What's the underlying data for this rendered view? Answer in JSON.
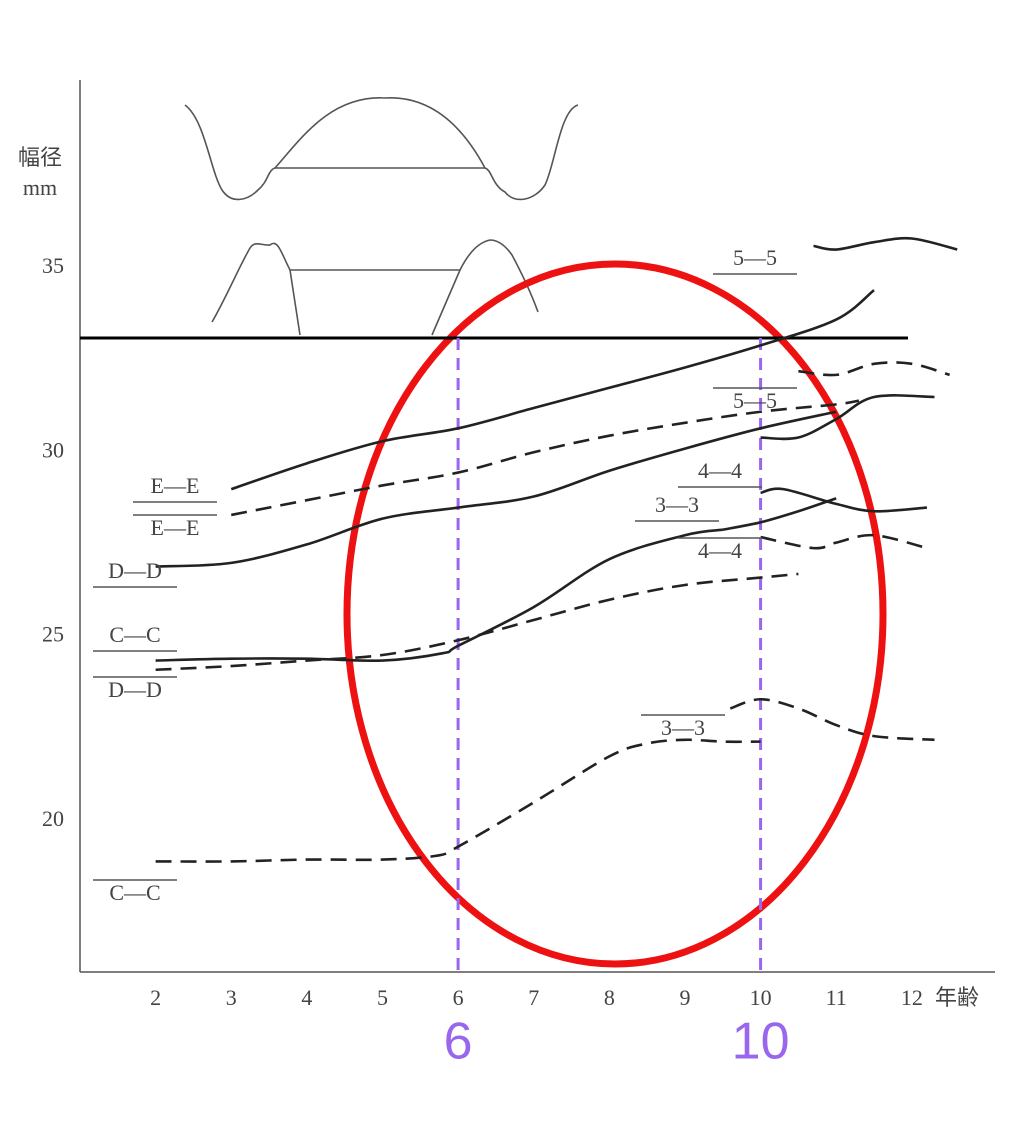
{
  "chart_data": {
    "type": "line",
    "ylabel": "幅径",
    "ylabel_unit": "mm",
    "xlabel": "年齢",
    "xlim": [
      1,
      13.1
    ],
    "ylim": [
      15.9,
      40.1
    ],
    "xticks": [
      2,
      3,
      4,
      5,
      6,
      7,
      8,
      9,
      10,
      11,
      12
    ],
    "yticks": [
      20,
      25,
      30,
      35
    ],
    "grid": false,
    "color": "#222222",
    "series": [
      {
        "name": "E—E",
        "dashed": false,
        "x": [
          3,
          4,
          5,
          6,
          7,
          8,
          9,
          10,
          11,
          11.5
        ],
        "values": [
          29.0,
          29.7,
          30.3,
          30.65,
          31.2,
          31.75,
          32.3,
          32.9,
          33.6,
          34.4
        ]
      },
      {
        "name": "E—E",
        "dashed": true,
        "x": [
          3,
          4,
          5,
          6,
          7,
          8,
          9,
          10,
          11,
          11.3
        ],
        "values": [
          28.3,
          28.7,
          29.1,
          29.45,
          30.0,
          30.45,
          30.8,
          31.1,
          31.3,
          31.4
        ]
      },
      {
        "name": "D—D",
        "dashed": false,
        "x": [
          2,
          3,
          4,
          5,
          6,
          7,
          8,
          9,
          10,
          11
        ],
        "values": [
          26.9,
          27.0,
          27.5,
          28.2,
          28.5,
          28.8,
          29.5,
          30.1,
          30.65,
          31.1
        ]
      },
      {
        "name": "C—C",
        "dashed": false,
        "x": [
          2,
          3,
          4,
          5,
          5.8,
          6,
          7,
          8,
          9,
          9.5
        ],
        "values": [
          24.35,
          24.4,
          24.4,
          24.35,
          24.55,
          24.75,
          25.8,
          27.1,
          27.75,
          27.9
        ]
      },
      {
        "name": "D—D",
        "dashed": true,
        "x": [
          2,
          3,
          4,
          5,
          6,
          7,
          8,
          9,
          10,
          10.5
        ],
        "values": [
          24.1,
          24.2,
          24.35,
          24.5,
          24.9,
          25.45,
          26.0,
          26.4,
          26.6,
          26.7
        ]
      },
      {
        "name": "C—C",
        "dashed": true,
        "x": [
          2,
          3,
          4,
          5,
          5.7,
          6,
          7,
          8,
          8.5,
          9,
          9.5,
          10
        ],
        "values": [
          18.9,
          18.9,
          18.95,
          18.95,
          19.05,
          19.3,
          20.5,
          21.75,
          22.1,
          22.2,
          22.15,
          22.15
        ]
      },
      {
        "name": "3—3",
        "dashed": false,
        "x": [
          9.5,
          10,
          10.5,
          11
        ],
        "values": [
          27.9,
          28.1,
          28.4,
          28.75
        ]
      },
      {
        "name": "3—3",
        "dashed": true,
        "x": [
          9.6,
          10,
          10.5,
          11,
          11.5,
          12.3
        ],
        "values": [
          23.05,
          23.3,
          23.05,
          22.6,
          22.3,
          22.2
        ]
      },
      {
        "name": "4—4",
        "dashed": false,
        "x": [
          10,
          10.3,
          11,
          11.5,
          12.2
        ],
        "values": [
          28.9,
          29.0,
          28.6,
          28.4,
          28.5
        ]
      },
      {
        "name": "4—4",
        "dashed": true,
        "x": [
          10,
          10.7,
          11,
          11.5,
          12.2
        ],
        "values": [
          27.7,
          27.4,
          27.55,
          27.75,
          27.4
        ]
      },
      {
        "name": "5—5",
        "dashed": false,
        "x": [
          10.7,
          11,
          11.5,
          12,
          12.6
        ],
        "values": [
          35.6,
          35.5,
          35.7,
          35.8,
          35.5
        ]
      },
      {
        "name": "5—5",
        "dashed": true,
        "x": [
          10.5,
          11,
          11.5,
          12,
          12.5
        ],
        "values": [
          32.2,
          32.1,
          32.4,
          32.4,
          32.1
        ]
      },
      {
        "dashed": false,
        "x": [
          10,
          10.5,
          11,
          11.5,
          12.3
        ],
        "values": [
          30.4,
          30.4,
          30.9,
          31.5,
          31.5
        ]
      }
    ],
    "reference_line": {
      "value": 33.1,
      "color": "#000000"
    },
    "vlines": {
      "values": [
        6,
        10
      ],
      "color": "#9966ee"
    }
  }
}
